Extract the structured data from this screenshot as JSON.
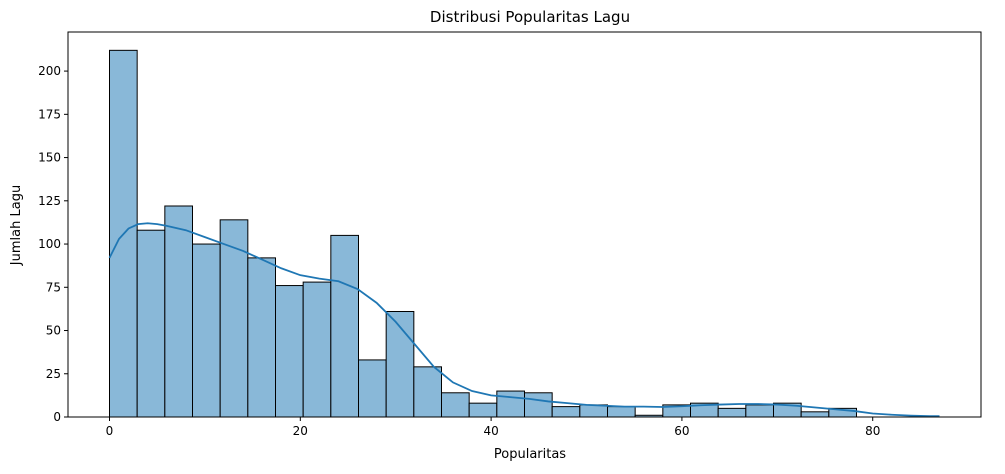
{
  "chart_data": {
    "type": "bar",
    "title": "Distribusi Popularitas Lagu",
    "xlabel": "Popularitas",
    "ylabel": "Jumlah Lagu",
    "xlim": [
      -4.35,
      91.35
    ],
    "ylim": [
      0,
      222.6
    ],
    "xticks": [
      0,
      20,
      40,
      60,
      80
    ],
    "yticks": [
      0,
      25,
      50,
      75,
      100,
      125,
      150,
      175,
      200
    ],
    "bin_start": 0,
    "bin_width": 2.9,
    "values": [
      212,
      108,
      122,
      100,
      114,
      92,
      76,
      78,
      105,
      33,
      61,
      29,
      14,
      8,
      15,
      14,
      6,
      7,
      6,
      1,
      7,
      8,
      5,
      7,
      8,
      3,
      5
    ],
    "kde": {
      "x": [
        0,
        1,
        2,
        3,
        4,
        5,
        6,
        8,
        10,
        12,
        14,
        16,
        18,
        20,
        22,
        24,
        26,
        28,
        30,
        32,
        34,
        36,
        38,
        40,
        42,
        44,
        46,
        48,
        50,
        52,
        54,
        56,
        58,
        60,
        62,
        64,
        66,
        68,
        70,
        72,
        74,
        76,
        78,
        80,
        82,
        84,
        86,
        87
      ],
      "y": [
        92,
        103,
        109,
        111.5,
        112,
        111.5,
        110.5,
        108,
        104,
        100,
        96,
        91,
        86,
        82,
        80,
        78.5,
        74,
        66,
        55,
        42,
        29,
        20,
        15,
        12.5,
        11.5,
        10.5,
        9,
        8,
        7,
        6.5,
        6,
        6,
        5.8,
        6.2,
        6.8,
        7.2,
        7.5,
        7.5,
        7.2,
        6.5,
        5.5,
        4.5,
        3.5,
        2,
        1.3,
        0.8,
        0.5,
        0.5
      ]
    },
    "colors": {
      "bar_fill": "#89b8d8",
      "bar_edge": "#000000",
      "kde_line": "#1f77b4",
      "axes": "#000000"
    },
    "grid": false,
    "legend": "none"
  }
}
